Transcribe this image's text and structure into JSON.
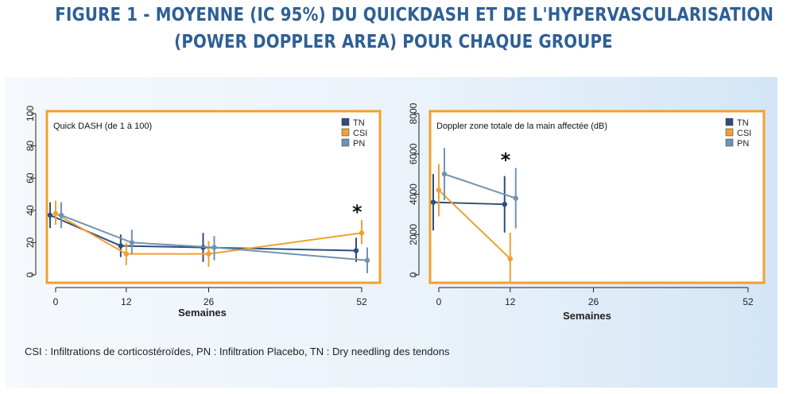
{
  "header": {
    "title_line1": "FIGURE 1 - MOYENNE (IC 95%) DU QUICKDASH ET DE L'HYPERVASCULARISATION",
    "title_line2": "(POWER DOPPLER AREA) POUR CHAQUE GROUPE"
  },
  "footnote": "CSI : Infiltrations de corticostéroïdes, PN : Infiltration Placebo, TN : Dry needling des tendons",
  "colors": {
    "TN": "#2e4e7e",
    "CSI": "#f0a030",
    "PN": "#6f94b2",
    "frame": "#f0a030"
  },
  "chart_data": [
    {
      "type": "line",
      "subtype": "point-estimate-with-95ci",
      "title": "Quick DASH (de 1 à 100)",
      "xlabel": "Semaines",
      "ylabel": "",
      "x_ticks": [
        0,
        12,
        26,
        52
      ],
      "y_ticks": [
        0,
        20,
        40,
        60,
        80,
        100
      ],
      "ylim": [
        0,
        100
      ],
      "legend_placement": "top-right",
      "annotations": [
        {
          "text": "*",
          "x": 52
        }
      ],
      "series": [
        {
          "name": "TN",
          "x": [
            0,
            12,
            26,
            52
          ],
          "y": [
            37,
            18,
            17,
            15
          ],
          "ci_low": [
            29,
            11,
            8,
            8
          ],
          "ci_high": [
            45,
            25,
            26,
            23
          ]
        },
        {
          "name": "CSI",
          "x": [
            0,
            12,
            26,
            52
          ],
          "y": [
            38,
            13,
            13,
            26
          ],
          "ci_low": [
            31,
            6,
            5,
            19
          ],
          "ci_high": [
            46,
            20,
            21,
            34
          ]
        },
        {
          "name": "PN",
          "x": [
            0,
            12,
            26,
            52
          ],
          "y": [
            37,
            20,
            17,
            9
          ],
          "ci_low": [
            29,
            13,
            9,
            1
          ],
          "ci_high": [
            45,
            28,
            24,
            17
          ]
        }
      ]
    },
    {
      "type": "line",
      "subtype": "point-estimate-with-95ci",
      "title": "Doppler zone totale de la main affectée (dB)",
      "xlabel": "Semaines",
      "ylabel": "",
      "x_ticks": [
        0,
        12,
        26,
        52
      ],
      "y_ticks": [
        0,
        2000,
        4000,
        6000,
        8000
      ],
      "ylim": [
        0,
        8000
      ],
      "legend_placement": "top-right",
      "annotations": [
        {
          "text": "*",
          "x": 12
        }
      ],
      "series": [
        {
          "name": "TN",
          "x": [
            0,
            12
          ],
          "y": [
            3600,
            3500
          ],
          "ci_low": [
            2200,
            2100
          ],
          "ci_high": [
            5000,
            4900
          ]
        },
        {
          "name": "CSI",
          "x": [
            0,
            12
          ],
          "y": [
            4200,
            800
          ],
          "ci_low": [
            2900,
            -600
          ],
          "ci_high": [
            5500,
            2100
          ]
        },
        {
          "name": "PN",
          "x": [
            0,
            12
          ],
          "y": [
            5000,
            3800
          ],
          "ci_low": [
            3700,
            2300
          ],
          "ci_high": [
            6300,
            5300
          ]
        }
      ]
    }
  ]
}
